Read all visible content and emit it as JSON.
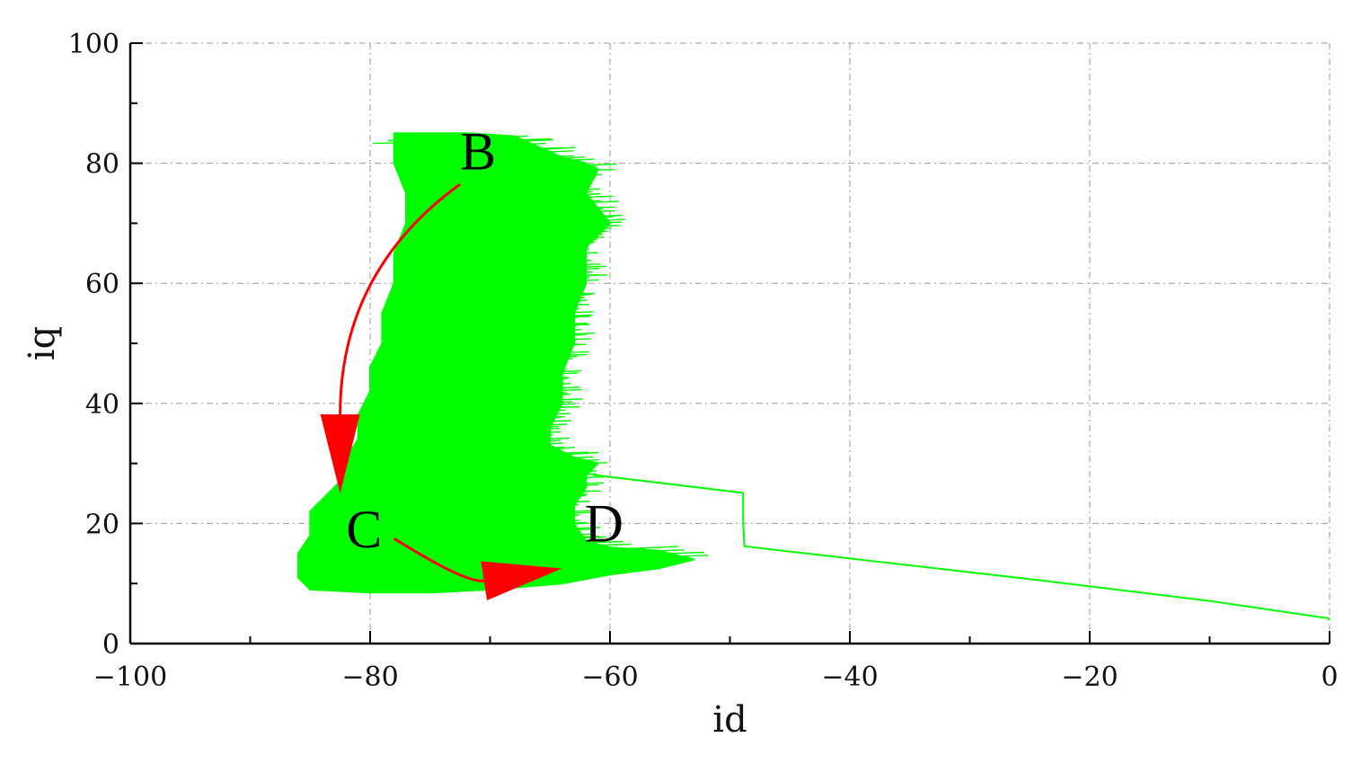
{
  "chart_data": {
    "type": "line",
    "xlabel": "id",
    "ylabel": "iq",
    "xlim": [
      -100,
      0
    ],
    "ylim": [
      0,
      100
    ],
    "grid": true,
    "x_ticks": [
      -100,
      -80,
      -60,
      -40,
      -20,
      0
    ],
    "y_ticks": [
      0,
      20,
      40,
      60,
      80,
      100
    ],
    "x_tick_labels": [
      "−100",
      "−80",
      "−60",
      "−40",
      "−20",
      "0"
    ],
    "y_tick_labels": [
      "0",
      "20",
      "40",
      "60",
      "80",
      "100"
    ],
    "series": [
      {
        "color": "#00ff00",
        "oscillation_region": [
          [
            -78,
            85
          ],
          [
            -75,
            85
          ],
          [
            -72,
            85
          ],
          [
            -68,
            84.5
          ],
          [
            -64,
            81
          ],
          [
            -62,
            80
          ],
          [
            -61,
            79
          ],
          [
            -62,
            75
          ],
          [
            -60,
            70
          ],
          [
            -62,
            66
          ],
          [
            -62,
            60
          ],
          [
            -63,
            55
          ],
          [
            -63,
            50
          ],
          [
            -64,
            45
          ],
          [
            -64,
            40
          ],
          [
            -65,
            36
          ],
          [
            -65,
            33
          ],
          [
            -63,
            31
          ],
          [
            -61,
            30
          ],
          [
            -62,
            28
          ],
          [
            -62,
            26
          ],
          [
            -63,
            23
          ],
          [
            -63,
            20
          ],
          [
            -62,
            17
          ],
          [
            -60,
            16
          ],
          [
            -56,
            15.5
          ],
          [
            -53,
            14
          ],
          [
            -56,
            12.5
          ],
          [
            -60,
            11.5
          ],
          [
            -64,
            10
          ],
          [
            -70,
            9
          ],
          [
            -75,
            8.5
          ],
          [
            -80,
            8.5
          ],
          [
            -85,
            9
          ],
          [
            -86,
            11
          ],
          [
            -86,
            15
          ],
          [
            -85,
            18
          ],
          [
            -85,
            22
          ],
          [
            -83,
            26
          ],
          [
            -82,
            28
          ],
          [
            -82,
            31
          ],
          [
            -81,
            34
          ],
          [
            -81,
            38
          ],
          [
            -80,
            42
          ],
          [
            -80,
            46
          ],
          [
            -79,
            50
          ],
          [
            -79,
            55
          ],
          [
            -78,
            60
          ],
          [
            -78,
            65
          ],
          [
            -77,
            70
          ],
          [
            -77,
            75
          ],
          [
            -78,
            80
          ],
          [
            -78,
            83
          ]
        ],
        "x": [
          -61.5,
          -48.9,
          -48.9,
          -48.8,
          -24,
          -10,
          -0.1,
          -0.05
        ],
        "y": [
          28.1,
          25.1,
          20.5,
          16.2,
          10.5,
          7.1,
          4.2,
          3.9
        ]
      }
    ],
    "annotations": [
      {
        "text": "B",
        "x": -71,
        "y": 79
      },
      {
        "text": "C",
        "x": -80.5,
        "y": 16
      },
      {
        "text": "D",
        "x": -60.5,
        "y": 17
      }
    ],
    "arrows": [
      {
        "color": "#ff0000",
        "from": [
          -72.5,
          76.5
        ],
        "control": [
          -82.5,
          62
        ],
        "to": [
          -82.5,
          25
        ]
      },
      {
        "color": "#ff0000",
        "from": [
          -78,
          17.5
        ],
        "control": [
          -72,
          10
        ],
        "to": [
          -64,
          12.5
        ]
      }
    ]
  }
}
